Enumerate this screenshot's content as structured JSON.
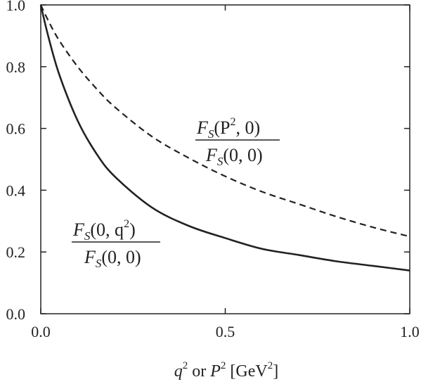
{
  "chart_data": {
    "type": "line",
    "title": "",
    "xlabel": "q^2 or P^2 [GeV^2]",
    "ylabel": "",
    "xlim": [
      0,
      1
    ],
    "ylim": [
      0,
      1
    ],
    "grid": false,
    "x_ticks": [
      "0.0",
      "0.5",
      "1.0"
    ],
    "y_ticks": [
      "0.0",
      "0.2",
      "0.4",
      "0.6",
      "0.8",
      "1.0"
    ],
    "series": [
      {
        "name": "F_S(P^2,0) / F_S(0,0)",
        "style": "dashed",
        "color": "#222222",
        "x": [
          0.0,
          0.02,
          0.05,
          0.1,
          0.15,
          0.2,
          0.3,
          0.4,
          0.5,
          0.6,
          0.7,
          0.8,
          0.9,
          1.0
        ],
        "y": [
          1.0,
          0.95,
          0.885,
          0.8,
          0.73,
          0.67,
          0.575,
          0.505,
          0.445,
          0.395,
          0.355,
          0.315,
          0.28,
          0.25
        ]
      },
      {
        "name": "F_S(0,q^2) / F_S(0,0)",
        "style": "solid",
        "color": "#222222",
        "x": [
          0.0,
          0.02,
          0.05,
          0.1,
          0.15,
          0.2,
          0.3,
          0.4,
          0.5,
          0.6,
          0.7,
          0.8,
          0.9,
          1.0
        ],
        "y": [
          1.0,
          0.9,
          0.775,
          0.625,
          0.52,
          0.445,
          0.345,
          0.285,
          0.245,
          0.21,
          0.19,
          0.17,
          0.155,
          0.14
        ]
      }
    ],
    "annotations": {
      "dashed_numerator": {
        "F": "F",
        "S": "S",
        "args": "(P",
        "sup": "2",
        "tail": ", 0)"
      },
      "dashed_denominator": {
        "F": "F",
        "S": "S",
        "args": "(0, 0)"
      },
      "solid_numerator": {
        "F": "F",
        "S": "S",
        "args": "(0, q",
        "sup": "2",
        "tail": ")"
      },
      "solid_denominator": {
        "F": "F",
        "S": "S",
        "args": "(0, 0)"
      }
    },
    "xlabel_parts": {
      "q": "q",
      "sup1": "2",
      "or": " or ",
      "P": "P",
      "sup2": "2",
      "unit": " [GeV",
      "sup3": "2",
      "close": "]"
    }
  }
}
